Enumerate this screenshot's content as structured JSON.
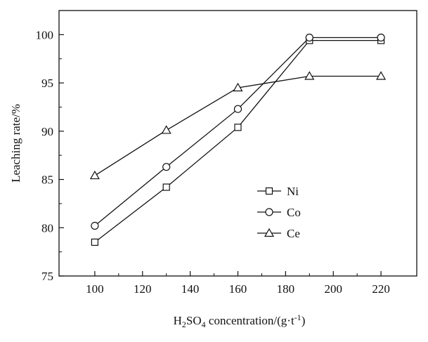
{
  "chart_data": {
    "type": "line",
    "x": [
      100,
      130,
      160,
      190,
      220
    ],
    "series": [
      {
        "name": "Ni",
        "marker": "square",
        "values": [
          78.5,
          84.2,
          90.4,
          99.4,
          99.4
        ]
      },
      {
        "name": "Co",
        "marker": "circle",
        "values": [
          80.2,
          86.3,
          92.3,
          99.7,
          99.7
        ]
      },
      {
        "name": "Ce",
        "marker": "triangle",
        "values": [
          85.4,
          90.1,
          94.5,
          95.7,
          95.7
        ]
      }
    ],
    "xlim": [
      85,
      235
    ],
    "ylim": [
      75,
      102.5
    ],
    "xticks": [
      100,
      120,
      140,
      160,
      180,
      200,
      220
    ],
    "yticks": [
      75,
      80,
      85,
      90,
      95,
      100
    ],
    "xlabel": {
      "main": "H",
      "sub1": "2",
      "mid": "SO",
      "sub2": "4",
      "rest": " concentration/(g·t",
      "sup": "-1",
      "end": ")"
    },
    "ylabel": "Leaching rate/%",
    "legend_position": "center-right",
    "grid": false,
    "line_color": "#111111"
  }
}
